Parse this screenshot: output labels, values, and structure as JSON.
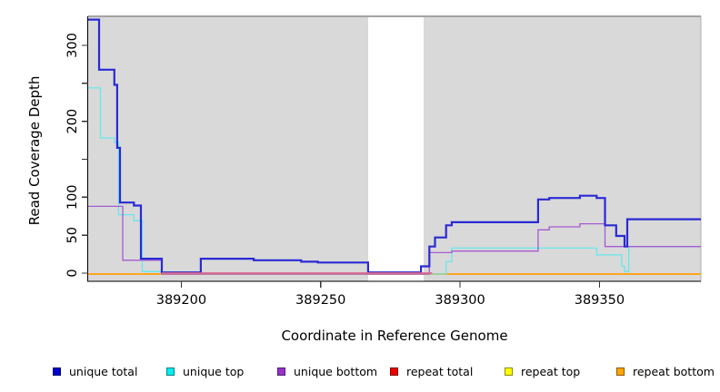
{
  "figure": {
    "xlabel": "Coordinate in Reference Genome",
    "ylabel": "Read Coverage Depth"
  },
  "legend": {
    "items": [
      {
        "label": "unique total",
        "color": "#0000cd"
      },
      {
        "label": "unique top",
        "color": "#00eeee"
      },
      {
        "label": "unique bottom",
        "color": "#9932cc"
      },
      {
        "label": "repeat total",
        "color": "#ee0000"
      },
      {
        "label": "repeat top",
        "color": "#ffff00"
      },
      {
        "label": "repeat bottom",
        "color": "#ffa500"
      }
    ],
    "item_lefts": [
      58,
      183,
      305,
      429,
      555,
      678
    ]
  },
  "chart_data": {
    "type": "line",
    "step": true,
    "title": "",
    "xlabel": "Coordinate in Reference Genome",
    "ylabel": "Read Coverage Depth",
    "xlim": [
      389166.6,
      389386.4
    ],
    "ylim": [
      0,
      338
    ],
    "grid": false,
    "legend_position": "bottom",
    "x_ticks": [
      389200,
      389250,
      389300,
      389350
    ],
    "y_ticks": [
      {
        "value": 0,
        "label": "0"
      },
      {
        "value": 50,
        "label": "50"
      },
      {
        "value": 100,
        "label": "100"
      },
      {
        "value": 150,
        "label": ""
      },
      {
        "value": 200,
        "label": "200"
      },
      {
        "value": 250,
        "label": ""
      },
      {
        "value": 300,
        "label": "300"
      }
    ],
    "background_regions": [
      {
        "start": 389166.6,
        "end": 389267,
        "fill": "#d9d9d9"
      },
      {
        "start": 389287,
        "end": 389386.4,
        "fill": "#d9d9d9"
      }
    ],
    "white_gap": {
      "start": 389267,
      "end": 389287
    },
    "series": [
      {
        "name": "repeat top",
        "color": "#ffff00",
        "width": 1.2,
        "points": [
          [
            389166.6,
            0
          ]
        ]
      },
      {
        "name": "repeat total",
        "color": "#ee0000",
        "width": 1.2,
        "points": [
          [
            389166.6,
            0
          ]
        ]
      },
      {
        "name": "repeat bottom",
        "color": "#ffa520",
        "width": 2,
        "points": [
          [
            389166.6,
            0
          ]
        ]
      },
      {
        "name": "unique top",
        "color": "#66e8ec",
        "width": 1.3,
        "points": [
          [
            389166.6,
            244
          ],
          [
            389171,
            178
          ],
          [
            389176,
            172
          ],
          [
            389177.5,
            77
          ],
          [
            389183,
            69
          ],
          [
            389186,
            2
          ],
          [
            389193,
            0
          ],
          [
            389295,
            15
          ],
          [
            389297,
            33
          ],
          [
            389349,
            24
          ],
          [
            389358,
            9
          ],
          [
            389359,
            2
          ],
          [
            389360.5,
            35
          ]
        ]
      },
      {
        "name": "unique bottom",
        "color": "#a55ad2",
        "width": 1.3,
        "points": [
          [
            389166.6,
            88
          ],
          [
            389179,
            17
          ],
          [
            389193,
            0
          ],
          [
            389289,
            27
          ],
          [
            389297,
            29
          ],
          [
            389328,
            57
          ],
          [
            389332,
            61
          ],
          [
            389343,
            65
          ],
          [
            389352,
            35
          ]
        ]
      },
      {
        "name": "unique total",
        "color": "#2a2ad4",
        "width": 2.2,
        "points": [
          [
            389166.6,
            334
          ],
          [
            389170.5,
            268
          ],
          [
            389176,
            248
          ],
          [
            389177,
            165
          ],
          [
            389178,
            93
          ],
          [
            389183,
            89
          ],
          [
            389185.5,
            19
          ],
          [
            389193,
            1
          ],
          [
            389207,
            19
          ],
          [
            389226,
            17
          ],
          [
            389243,
            15
          ],
          [
            389249,
            14
          ],
          [
            389267,
            1
          ],
          [
            389286,
            9
          ],
          [
            389289,
            35
          ],
          [
            389291,
            47
          ],
          [
            389295,
            63
          ],
          [
            389297,
            67
          ],
          [
            389328,
            97
          ],
          [
            389332,
            99
          ],
          [
            389343,
            102
          ],
          [
            389349,
            99
          ],
          [
            389352,
            63
          ],
          [
            389356,
            49
          ],
          [
            389359,
            35
          ],
          [
            389360,
            71
          ]
        ]
      }
    ],
    "baseline_overlay": {
      "name": "repeat total visible segment",
      "color": "#d8698c",
      "width": 1.7,
      "start": 389193,
      "end": 389290,
      "value": 0
    }
  }
}
